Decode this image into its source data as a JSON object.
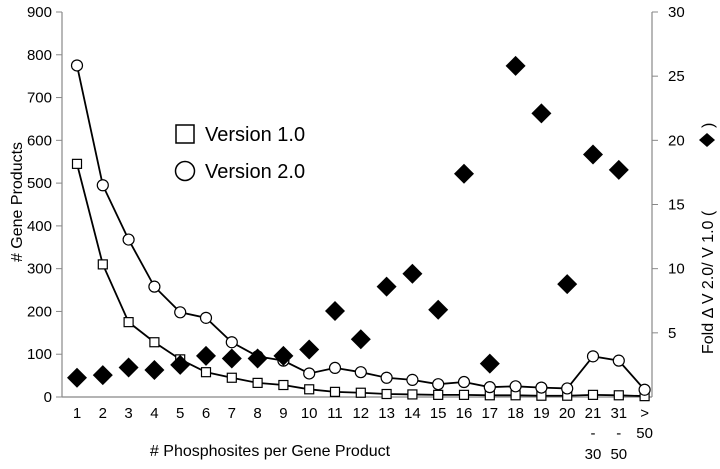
{
  "chart_data": {
    "type": "line",
    "title": "",
    "xlabel": "# Phosphosites per Gene Product",
    "ylabel_left": "# Gene Products",
    "ylabel_right": "Fold Δ V 2.0/ V 1.0  (",
    "ylabel_right_close": ")",
    "ylim_left": [
      0,
      900
    ],
    "yticks_left": [
      0,
      100,
      200,
      300,
      400,
      500,
      600,
      700,
      800,
      900
    ],
    "ylim_right": [
      0,
      30
    ],
    "yticks_right": [
      5,
      10,
      15,
      20,
      25,
      30
    ],
    "categories": [
      {
        "l1": "1"
      },
      {
        "l1": "2"
      },
      {
        "l1": "3"
      },
      {
        "l1": "4"
      },
      {
        "l1": "5"
      },
      {
        "l1": "6"
      },
      {
        "l1": "7"
      },
      {
        "l1": "8"
      },
      {
        "l1": "9"
      },
      {
        "l1": "10"
      },
      {
        "l1": "11"
      },
      {
        "l1": "12"
      },
      {
        "l1": "13"
      },
      {
        "l1": "14"
      },
      {
        "l1": "15"
      },
      {
        "l1": "16"
      },
      {
        "l1": "17"
      },
      {
        "l1": "18"
      },
      {
        "l1": "19"
      },
      {
        "l1": "20"
      },
      {
        "l1": "21",
        "l2": "-",
        "l3": "30"
      },
      {
        "l1": "31",
        "l2": "-",
        "l3": "50"
      },
      {
        "l1": ">",
        "l2": "50"
      }
    ],
    "series": [
      {
        "name": "Version 1.0",
        "axis": "left",
        "marker": "square",
        "values": [
          545,
          310,
          175,
          128,
          88,
          58,
          45,
          33,
          28,
          18,
          12,
          10,
          7,
          6,
          5,
          5,
          4,
          4,
          3,
          3,
          5,
          4,
          2
        ]
      },
      {
        "name": "Version 2.0",
        "axis": "left",
        "marker": "circle",
        "values": [
          775,
          495,
          368,
          258,
          198,
          185,
          128,
          95,
          85,
          55,
          68,
          58,
          45,
          40,
          30,
          35,
          23,
          25,
          22,
          20,
          95,
          85,
          17
        ]
      },
      {
        "name": "Fold change",
        "axis": "right",
        "marker": "diamond",
        "values": [
          1.5,
          1.7,
          2.3,
          2.1,
          2.5,
          3.2,
          3.0,
          3.0,
          3.2,
          3.7,
          6.7,
          4.5,
          8.6,
          9.6,
          6.8,
          17.4,
          2.6,
          25.8,
          22.1,
          8.8,
          18.9,
          17.7,
          null
        ]
      }
    ]
  }
}
